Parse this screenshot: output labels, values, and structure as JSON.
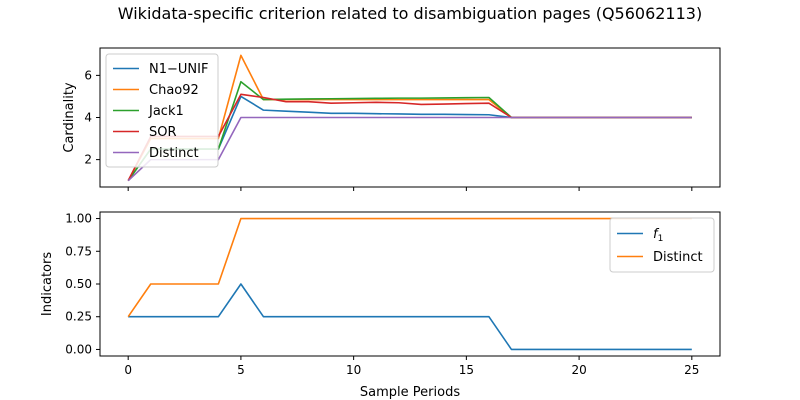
{
  "title": "Wikidata-specific criterion related to disambiguation pages (Q56062113)",
  "colors": {
    "blue": "#1f77b4",
    "orange": "#ff7f0e",
    "green": "#2ca02c",
    "red": "#d62728",
    "purple": "#9467bd"
  },
  "chart_data": [
    {
      "type": "line",
      "xlabel": "",
      "ylabel": "Cardinality",
      "xlim": [
        -1.25,
        26.25
      ],
      "ylim": [
        0.7,
        7.3
      ],
      "xticks": [
        0,
        5,
        10,
        15,
        20,
        25
      ],
      "yticks": [
        2,
        4,
        6
      ],
      "show_xtick_labels": false,
      "legend": "upper left",
      "grid": false,
      "series": [
        {
          "name": "N1−UNIF",
          "color": "#1f77b4",
          "x": [
            0,
            1,
            2,
            3,
            4,
            5,
            6,
            7,
            8,
            9,
            10,
            11,
            12,
            13,
            14,
            15,
            16,
            17,
            18,
            19,
            20,
            21,
            22,
            23,
            24,
            25
          ],
          "y": [
            1,
            2.5,
            2.5,
            2.5,
            2.5,
            5.0,
            4.35,
            4.3,
            4.25,
            4.2,
            4.2,
            4.18,
            4.17,
            4.15,
            4.15,
            4.14,
            4.13,
            4.0,
            4.0,
            4.0,
            4.0,
            4.0,
            4.0,
            4.0,
            4.0,
            4.0
          ]
        },
        {
          "name": "Chao92",
          "color": "#ff7f0e",
          "x": [
            0,
            1,
            2,
            3,
            4,
            5,
            6,
            7,
            8,
            9,
            10,
            11,
            12,
            13,
            14,
            15,
            16,
            17,
            18,
            19,
            20,
            21,
            22,
            23,
            24,
            25
          ],
          "y": [
            1,
            3.0,
            3.0,
            3.0,
            3.0,
            6.95,
            4.85,
            4.85,
            4.85,
            4.85,
            4.85,
            4.85,
            4.85,
            4.85,
            4.85,
            4.85,
            4.85,
            4.0,
            4.0,
            4.0,
            4.0,
            4.0,
            4.0,
            4.0,
            4.0,
            4.0
          ]
        },
        {
          "name": "Jack1",
          "color": "#2ca02c",
          "x": [
            0,
            1,
            2,
            3,
            4,
            5,
            6,
            7,
            8,
            9,
            10,
            11,
            12,
            13,
            14,
            15,
            16,
            17,
            18,
            19,
            20,
            21,
            22,
            23,
            24,
            25
          ],
          "y": [
            1,
            2.5,
            2.5,
            2.5,
            2.5,
            5.7,
            4.85,
            4.87,
            4.88,
            4.89,
            4.9,
            4.91,
            4.92,
            4.92,
            4.93,
            4.94,
            4.95,
            4.0,
            4.0,
            4.0,
            4.0,
            4.0,
            4.0,
            4.0,
            4.0,
            4.0
          ]
        },
        {
          "name": "SOR",
          "color": "#d62728",
          "x": [
            0,
            1,
            2,
            3,
            4,
            5,
            6,
            7,
            8,
            9,
            10,
            11,
            12,
            13,
            14,
            15,
            16,
            17,
            18,
            19,
            20,
            21,
            22,
            23,
            24,
            25
          ],
          "y": [
            1,
            3.1,
            3.1,
            3.1,
            3.1,
            5.1,
            4.95,
            4.75,
            4.75,
            4.68,
            4.7,
            4.72,
            4.7,
            4.62,
            4.64,
            4.66,
            4.68,
            4.0,
            4.0,
            4.0,
            4.0,
            4.0,
            4.0,
            4.0,
            4.0,
            4.0
          ]
        },
        {
          "name": "Distinct",
          "color": "#9467bd",
          "x": [
            0,
            1,
            2,
            3,
            4,
            5,
            6,
            7,
            8,
            9,
            10,
            11,
            12,
            13,
            14,
            15,
            16,
            17,
            18,
            19,
            20,
            21,
            22,
            23,
            24,
            25
          ],
          "y": [
            1,
            2,
            2,
            2,
            2,
            4,
            4,
            4,
            4,
            4,
            4,
            4,
            4,
            4,
            4,
            4,
            4,
            4,
            4,
            4,
            4,
            4,
            4,
            4,
            4,
            4
          ]
        }
      ]
    },
    {
      "type": "line",
      "xlabel": "Sample Periods",
      "ylabel": "Indicators",
      "xlim": [
        -1.25,
        26.25
      ],
      "ylim": [
        -0.05,
        1.05
      ],
      "xticks": [
        0,
        5,
        10,
        15,
        20,
        25
      ],
      "yticks": [
        0.0,
        0.25,
        0.5,
        0.75,
        1.0
      ],
      "ytick_labels": [
        "0.00",
        "0.25",
        "0.50",
        "0.75",
        "1.00"
      ],
      "show_xtick_labels": true,
      "legend": "upper right",
      "grid": false,
      "series": [
        {
          "name": "f",
          "name_sub": "1",
          "color": "#1f77b4",
          "x": [
            0,
            1,
            2,
            3,
            4,
            5,
            6,
            7,
            8,
            9,
            10,
            11,
            12,
            13,
            14,
            15,
            16,
            17,
            18,
            19,
            20,
            21,
            22,
            23,
            24,
            25
          ],
          "y": [
            0.25,
            0.25,
            0.25,
            0.25,
            0.25,
            0.5,
            0.25,
            0.25,
            0.25,
            0.25,
            0.25,
            0.25,
            0.25,
            0.25,
            0.25,
            0.25,
            0.25,
            0,
            0,
            0,
            0,
            0,
            0,
            0,
            0,
            0
          ]
        },
        {
          "name": "Distinct",
          "color": "#ff7f0e",
          "x": [
            0,
            1,
            2,
            3,
            4,
            5,
            6,
            7,
            8,
            9,
            10,
            11,
            12,
            13,
            14,
            15,
            16,
            17,
            18,
            19,
            20,
            21,
            22,
            23,
            24,
            25
          ],
          "y": [
            0.25,
            0.5,
            0.5,
            0.5,
            0.5,
            1,
            1,
            1,
            1,
            1,
            1,
            1,
            1,
            1,
            1,
            1,
            1,
            1,
            1,
            1,
            1,
            1,
            1,
            1,
            1,
            1
          ]
        }
      ]
    }
  ]
}
